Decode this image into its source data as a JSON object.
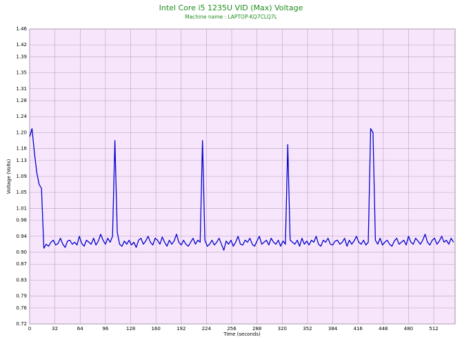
{
  "chart_data": {
    "type": "line",
    "title": "Intel Core i5 1235U VID (Max) Voltage",
    "subtitle": "Machine name : LAPTOP-KQ7CLQ7L",
    "x_label": "Time (seconds)",
    "y_label": "Voltage (Volts)",
    "color": "#0000cc",
    "grid": true,
    "xlim": [
      0,
      539
    ],
    "xticks": [
      0,
      32,
      64,
      96,
      128,
      160,
      192,
      224,
      256,
      288,
      320,
      352,
      384,
      416,
      448,
      480,
      512
    ],
    "ylim": [
      0.72,
      1.46
    ],
    "yticks": [
      0.72,
      0.76,
      0.79,
      0.83,
      0.87,
      0.9,
      0.94,
      0.98,
      1.01,
      1.05,
      1.09,
      1.13,
      1.16,
      1.2,
      1.24,
      1.28,
      1.31,
      1.35,
      1.39,
      1.42,
      1.46
    ],
    "x": [
      0,
      3,
      6,
      9,
      12,
      15,
      18,
      21,
      24,
      27,
      30,
      33,
      36,
      39,
      42,
      45,
      48,
      51,
      54,
      57,
      60,
      63,
      66,
      69,
      72,
      75,
      78,
      81,
      84,
      87,
      90,
      93,
      96,
      99,
      102,
      105,
      108,
      111,
      114,
      117,
      120,
      123,
      126,
      129,
      132,
      135,
      138,
      141,
      144,
      147,
      150,
      153,
      156,
      159,
      162,
      165,
      168,
      171,
      174,
      177,
      180,
      183,
      186,
      189,
      192,
      195,
      198,
      201,
      204,
      207,
      210,
      213,
      216,
      219,
      222,
      225,
      228,
      231,
      234,
      237,
      240,
      243,
      246,
      249,
      252,
      255,
      258,
      261,
      264,
      267,
      270,
      273,
      276,
      279,
      282,
      285,
      288,
      291,
      294,
      297,
      300,
      303,
      306,
      309,
      312,
      315,
      318,
      321,
      324,
      327,
      330,
      333,
      336,
      339,
      342,
      345,
      348,
      351,
      354,
      357,
      360,
      363,
      366,
      369,
      372,
      375,
      378,
      381,
      384,
      387,
      390,
      393,
      396,
      399,
      402,
      405,
      408,
      411,
      414,
      417,
      420,
      423,
      426,
      429,
      432,
      435,
      438,
      441,
      444,
      447,
      450,
      453,
      456,
      459,
      462,
      465,
      468,
      471,
      474,
      477,
      480,
      483,
      486,
      489,
      492,
      495,
      498,
      501,
      504,
      507,
      510,
      513,
      516,
      519,
      522,
      525,
      528,
      531,
      534,
      537
    ],
    "values": [
      1.19,
      1.21,
      1.15,
      1.1,
      1.07,
      1.06,
      0.91,
      0.92,
      0.915,
      0.925,
      0.93,
      0.918,
      0.922,
      0.935,
      0.92,
      0.912,
      0.928,
      0.93,
      0.92,
      0.925,
      0.918,
      0.94,
      0.922,
      0.915,
      0.93,
      0.925,
      0.92,
      0.935,
      0.918,
      0.928,
      0.945,
      0.93,
      0.92,
      0.935,
      0.925,
      0.94,
      1.18,
      0.95,
      0.92,
      0.915,
      0.928,
      0.92,
      0.93,
      0.918,
      0.925,
      0.912,
      0.93,
      0.935,
      0.92,
      0.928,
      0.94,
      0.925,
      0.918,
      0.935,
      0.93,
      0.92,
      0.938,
      0.925,
      0.915,
      0.93,
      0.92,
      0.928,
      0.945,
      0.925,
      0.918,
      0.93,
      0.92,
      0.915,
      0.925,
      0.935,
      0.92,
      0.93,
      0.925,
      1.18,
      0.93,
      0.915,
      0.92,
      0.93,
      0.918,
      0.925,
      0.935,
      0.92,
      0.905,
      0.928,
      0.92,
      0.93,
      0.915,
      0.925,
      0.94,
      0.92,
      0.918,
      0.93,
      0.925,
      0.935,
      0.92,
      0.915,
      0.928,
      0.94,
      0.92,
      0.925,
      0.93,
      0.918,
      0.935,
      0.925,
      0.92,
      0.93,
      0.915,
      0.928,
      0.92,
      1.17,
      0.93,
      0.925,
      0.92,
      0.93,
      0.915,
      0.935,
      0.92,
      0.928,
      0.918,
      0.93,
      0.925,
      0.94,
      0.92,
      0.915,
      0.93,
      0.925,
      0.935,
      0.92,
      0.918,
      0.928,
      0.93,
      0.92,
      0.925,
      0.935,
      0.915,
      0.93,
      0.92,
      0.928,
      0.94,
      0.925,
      0.92,
      0.93,
      0.918,
      0.925,
      1.21,
      1.2,
      0.93,
      0.92,
      0.935,
      0.918,
      0.925,
      0.93,
      0.92,
      0.915,
      0.928,
      0.935,
      0.92,
      0.925,
      0.93,
      0.918,
      0.94,
      0.925,
      0.92,
      0.935,
      0.928,
      0.92,
      0.93,
      0.945,
      0.925,
      0.918,
      0.93,
      0.935,
      0.92,
      0.928,
      0.94,
      0.925,
      0.93,
      0.92,
      0.935,
      0.925
    ]
  }
}
